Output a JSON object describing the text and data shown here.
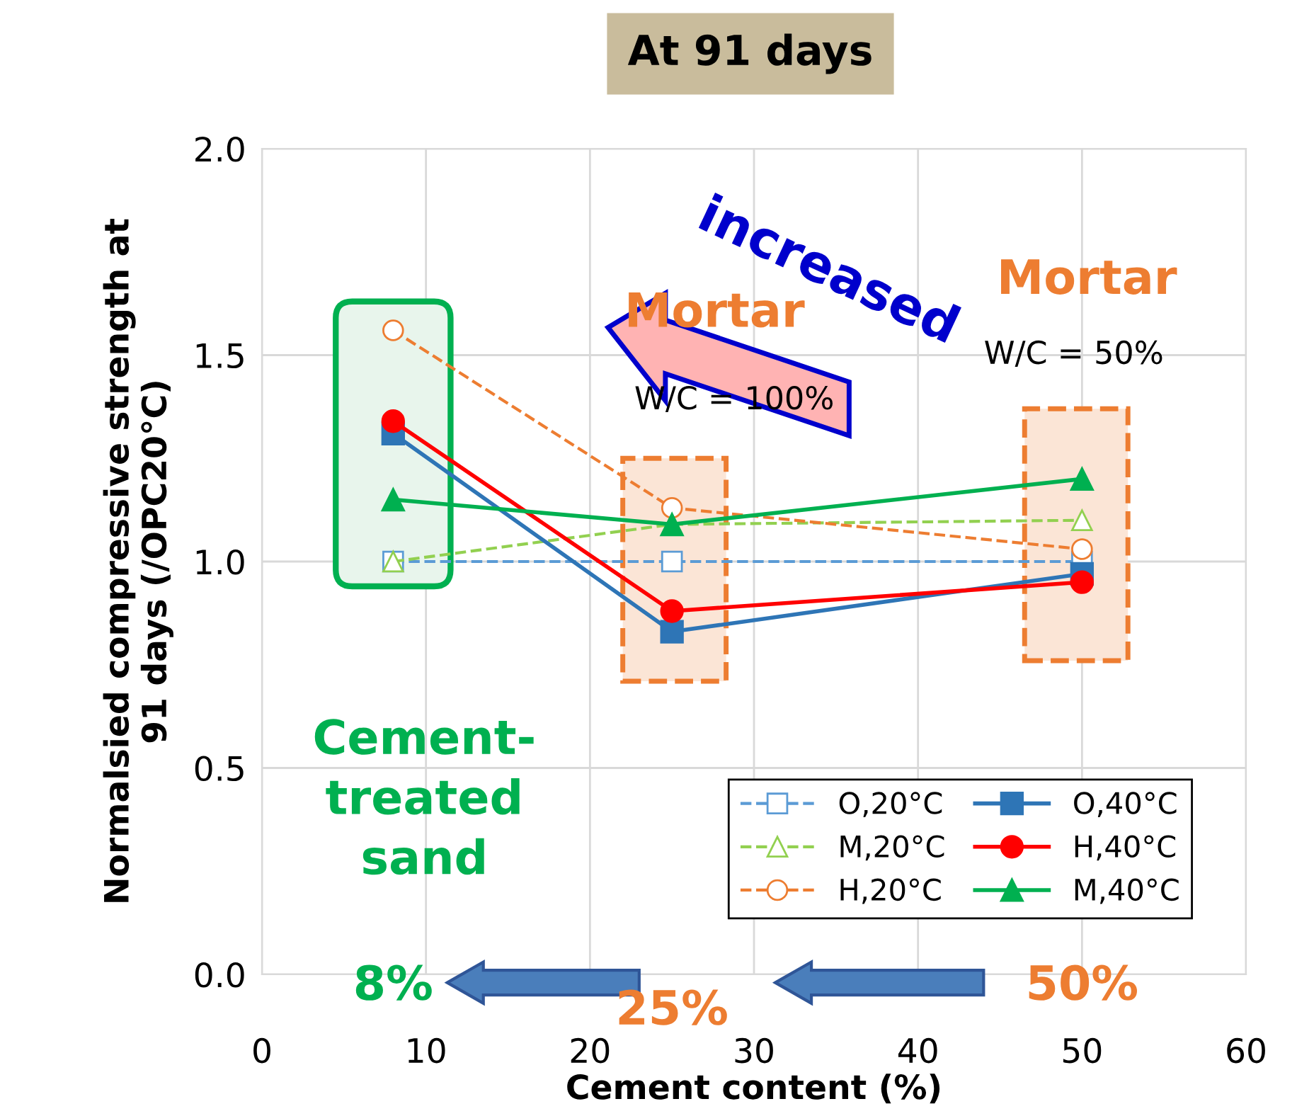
{
  "chart_data": {
    "type": "line",
    "title": "At 91 days",
    "xlabel": "Cement content (%)",
    "ylabel": "Normalsied compressive strength at\n91 days (/OPC20°C)",
    "x": [
      8,
      25,
      50
    ],
    "series": [
      {
        "name": "O,20°C",
        "color": "#5b9bd5",
        "marker": "square",
        "line_style": "dashed",
        "values": [
          1.0,
          1.0,
          1.0
        ]
      },
      {
        "name": "M,20°C",
        "color": "#92d050",
        "marker": "triangle",
        "line_style": "dashed",
        "values": [
          1.0,
          1.09,
          1.1
        ]
      },
      {
        "name": "H,20°C",
        "color": "#ed7d31",
        "marker": "circle",
        "line_style": "dashed",
        "values": [
          1.56,
          1.13,
          1.03
        ]
      },
      {
        "name": "O,40°C",
        "color": "#2e75b6",
        "marker": "square",
        "line_style": "solid",
        "values": [
          1.31,
          0.83,
          0.97
        ]
      },
      {
        "name": "H,40°C",
        "color": "#ff0000",
        "marker": "circle",
        "line_style": "solid",
        "values": [
          1.34,
          0.88,
          0.95
        ]
      },
      {
        "name": "M,40°C",
        "color": "#00b050",
        "marker": "triangle",
        "line_style": "solid",
        "values": [
          1.15,
          1.09,
          1.2
        ]
      }
    ],
    "xlim": [
      0,
      60
    ],
    "xticks": [
      0,
      10,
      20,
      30,
      40,
      50,
      60
    ],
    "ylim": [
      0,
      2
    ],
    "yticks": [
      {
        "value": 0,
        "label": "0.0"
      },
      {
        "value": 0.5,
        "label": "0.5"
      },
      {
        "value": 1,
        "label": "1.0"
      },
      {
        "value": 1.5,
        "label": "1.5"
      },
      {
        "value": 2,
        "label": "2.0"
      }
    ],
    "grid": true,
    "legend": "bottom right",
    "annotations": [
      "increased",
      "Mortar",
      "W/C = 100%",
      "Mortar",
      "W/C = 50%",
      "Cement-\ntreated\nsand",
      "8%",
      "25%",
      "50%"
    ]
  }
}
